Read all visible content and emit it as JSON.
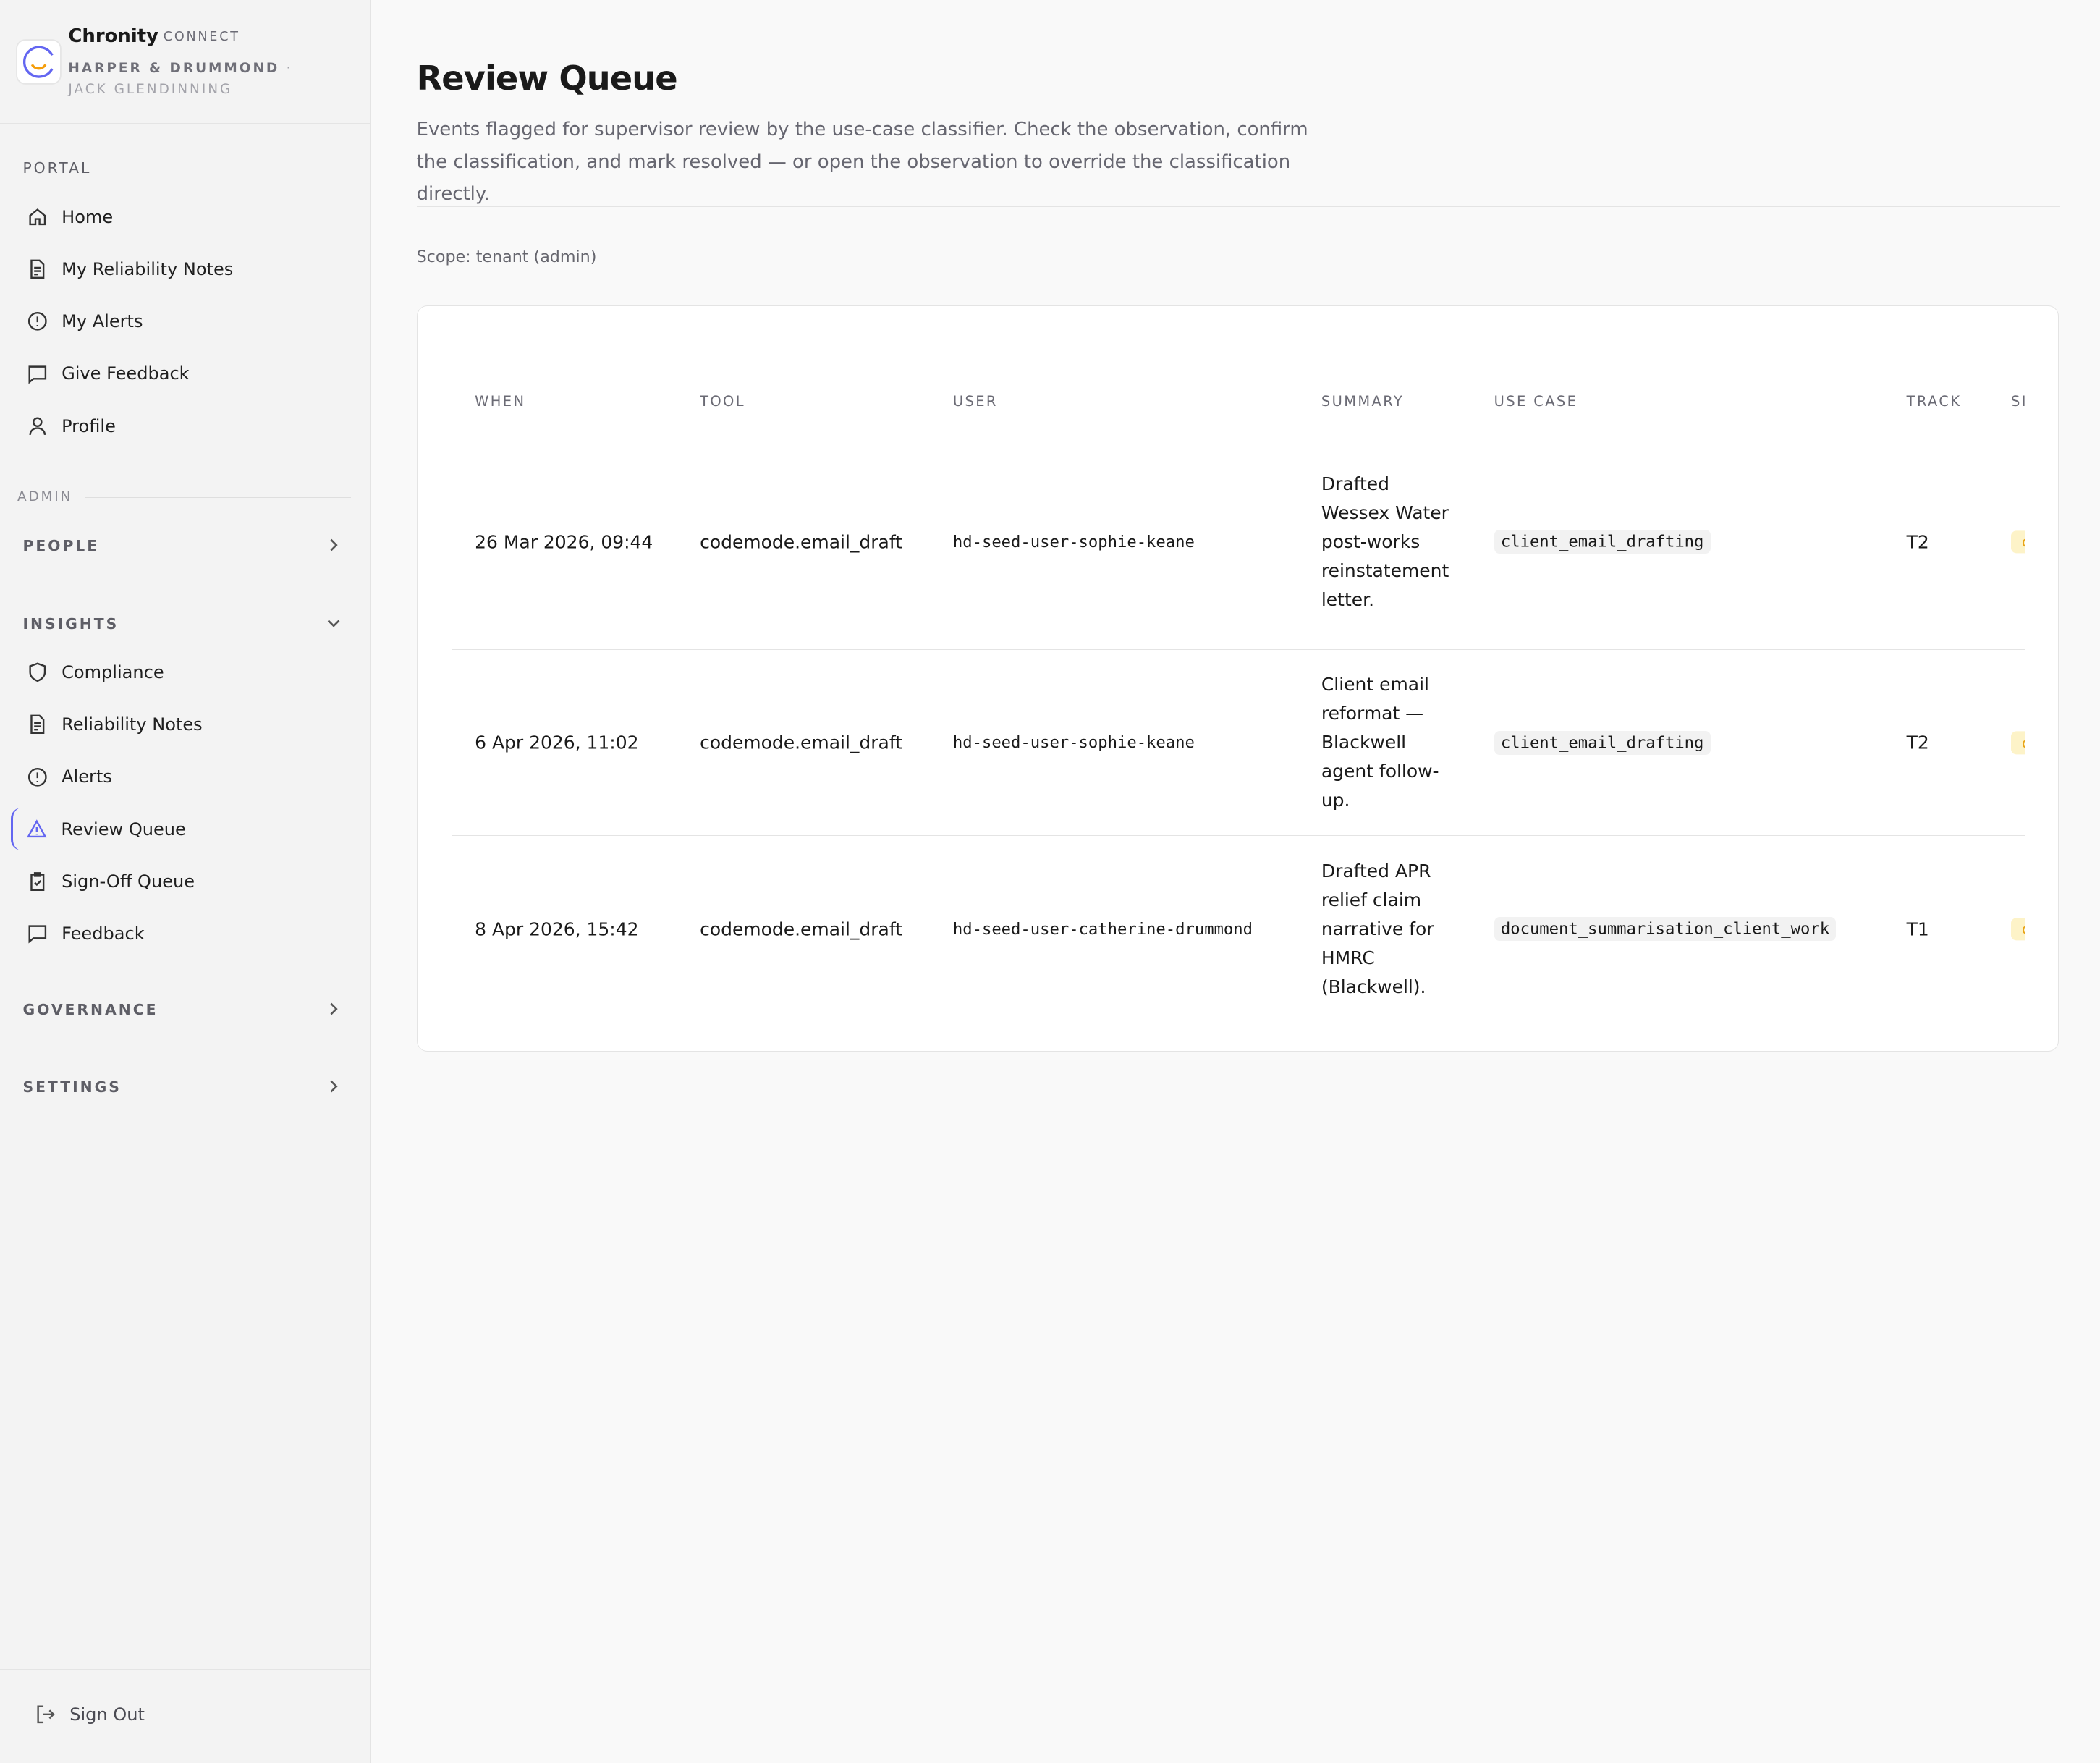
{
  "brand": {
    "name": "Chronity",
    "product": "CONNECT",
    "org": "HARPER & DRUMMOND",
    "user": "· JACK GLENDINNING",
    "logo_colors": {
      "ring": "#6366f1",
      "smile": "#f59e0b"
    }
  },
  "sidebar": {
    "portal_label": "PORTAL",
    "portal_items": [
      {
        "label": "Home",
        "icon": "home-icon"
      },
      {
        "label": "My Reliability Notes",
        "icon": "document-icon"
      },
      {
        "label": "My Alerts",
        "icon": "alert-circle-icon"
      },
      {
        "label": "Give Feedback",
        "icon": "message-square-icon"
      },
      {
        "label": "Profile",
        "icon": "user-icon"
      }
    ],
    "admin_label": "ADMIN",
    "people_label": "PEOPLE",
    "insights_label": "INSIGHTS",
    "insights_items": [
      {
        "label": "Compliance",
        "icon": "shield-icon"
      },
      {
        "label": "Reliability Notes",
        "icon": "document-icon"
      },
      {
        "label": "Alerts",
        "icon": "alert-circle-icon"
      },
      {
        "label": "Review Queue",
        "icon": "warning-triangle-icon",
        "active": true
      },
      {
        "label": "Sign-Off Queue",
        "icon": "clipboard-check-icon"
      },
      {
        "label": "Feedback",
        "icon": "message-square-icon"
      }
    ],
    "governance_label": "GOVERNANCE",
    "settings_label": "SETTINGS",
    "sign_out": "Sign Out",
    "accent": "#6366f1"
  },
  "page": {
    "title": "Review Queue",
    "description": "Events flagged for supervisor review by the use-case classifier. Check the observation, confirm the classification, and mark resolved — or open the observation to override the classification directly.",
    "scope": "Scope: tenant (admin)"
  },
  "table": {
    "headers": [
      "WHEN",
      "TOOL",
      "USER",
      "SUMMARY",
      "USE CASE",
      "TRACK",
      "SI"
    ],
    "rows": [
      {
        "when": "26 Mar 2026, 09:44",
        "tool": "codemode.email_draft",
        "user": "hd-seed-user-sophie-keane",
        "summary": "Drafted Wessex Water post-works reinstatement letter.",
        "use_case": "client_email_drafting",
        "track": "T2",
        "status": "c"
      },
      {
        "when": "6 Apr 2026, 11:02",
        "tool": "codemode.email_draft",
        "user": "hd-seed-user-sophie-keane",
        "summary": "Client email reformat — Blackwell agent follow-up.",
        "use_case": "client_email_drafting",
        "track": "T2",
        "status": "c"
      },
      {
        "when": "8 Apr 2026, 15:42",
        "tool": "codemode.email_draft",
        "user": "hd-seed-user-catherine-drummond",
        "summary": "Drafted APR relief claim narrative for HMRC (Blackwell).",
        "use_case": "document_summarisation_client_work",
        "track": "T1",
        "status": "c"
      }
    ],
    "badge_color": "#fdf3c8"
  }
}
